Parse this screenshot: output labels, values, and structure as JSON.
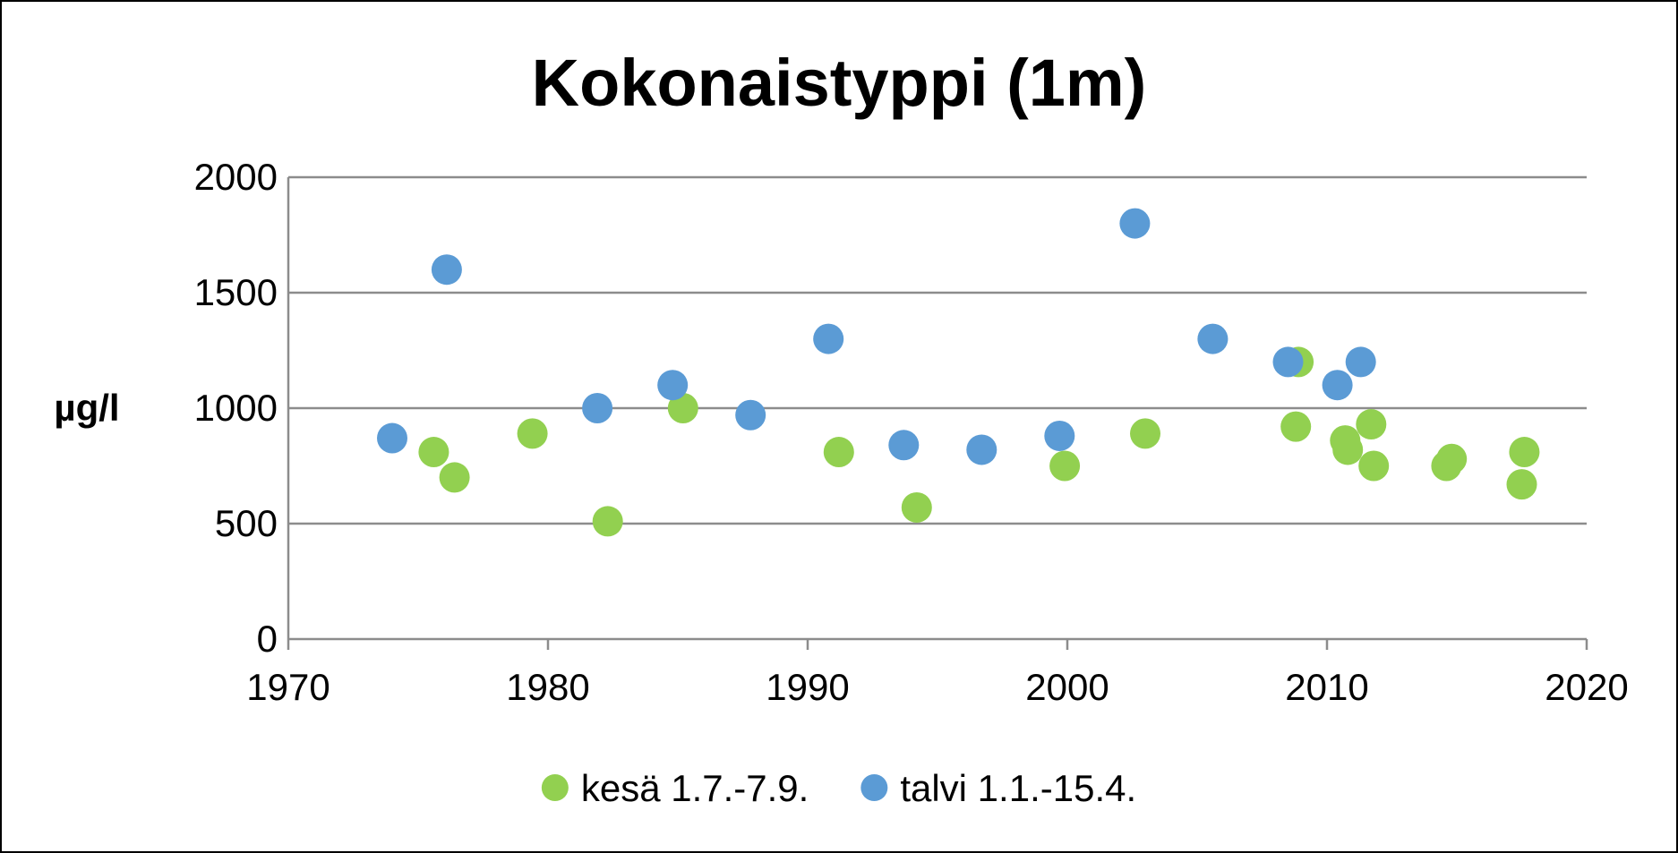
{
  "chart_data": {
    "type": "scatter",
    "title": "Kokonaistyppi (1m)",
    "xlabel": "",
    "ylabel": "µg/l",
    "xlim": [
      1970,
      2020
    ],
    "ylim": [
      0,
      2000
    ],
    "xticks": [
      "1970",
      "1980",
      "1990",
      "2000",
      "2010",
      "2020"
    ],
    "yticks": [
      "0",
      "500",
      "1000",
      "1500",
      "2000"
    ],
    "grid": "horizontal",
    "legend": "bottom",
    "series": [
      {
        "name": "kesä 1.7.-7.9.",
        "color": "#92d050",
        "points": [
          {
            "x": 1975.6,
            "y": 810
          },
          {
            "x": 1976.4,
            "y": 700
          },
          {
            "x": 1979.4,
            "y": 890
          },
          {
            "x": 1982.3,
            "y": 510
          },
          {
            "x": 1985.2,
            "y": 1000
          },
          {
            "x": 1991.2,
            "y": 810
          },
          {
            "x": 1994.2,
            "y": 570
          },
          {
            "x": 1999.9,
            "y": 750
          },
          {
            "x": 2003.0,
            "y": 890
          },
          {
            "x": 2008.8,
            "y": 920
          },
          {
            "x": 2008.9,
            "y": 1200
          },
          {
            "x": 2010.7,
            "y": 860
          },
          {
            "x": 2010.8,
            "y": 820
          },
          {
            "x": 2011.7,
            "y": 930
          },
          {
            "x": 2011.8,
            "y": 750
          },
          {
            "x": 2014.6,
            "y": 750
          },
          {
            "x": 2014.8,
            "y": 780
          },
          {
            "x": 2017.5,
            "y": 670
          },
          {
            "x": 2017.6,
            "y": 810
          }
        ]
      },
      {
        "name": "talvi 1.1.-15.4.",
        "color": "#5b9bd5",
        "points": [
          {
            "x": 1974.0,
            "y": 870
          },
          {
            "x": 1976.1,
            "y": 1600
          },
          {
            "x": 1981.9,
            "y": 1000
          },
          {
            "x": 1984.8,
            "y": 1100
          },
          {
            "x": 1987.8,
            "y": 970
          },
          {
            "x": 1990.8,
            "y": 1300
          },
          {
            "x": 1993.7,
            "y": 840
          },
          {
            "x": 1996.7,
            "y": 820
          },
          {
            "x": 1999.7,
            "y": 880
          },
          {
            "x": 2002.6,
            "y": 1800
          },
          {
            "x": 2005.6,
            "y": 1300
          },
          {
            "x": 2008.5,
            "y": 1200
          },
          {
            "x": 2010.4,
            "y": 1100
          },
          {
            "x": 2011.3,
            "y": 1200
          }
        ]
      }
    ]
  }
}
